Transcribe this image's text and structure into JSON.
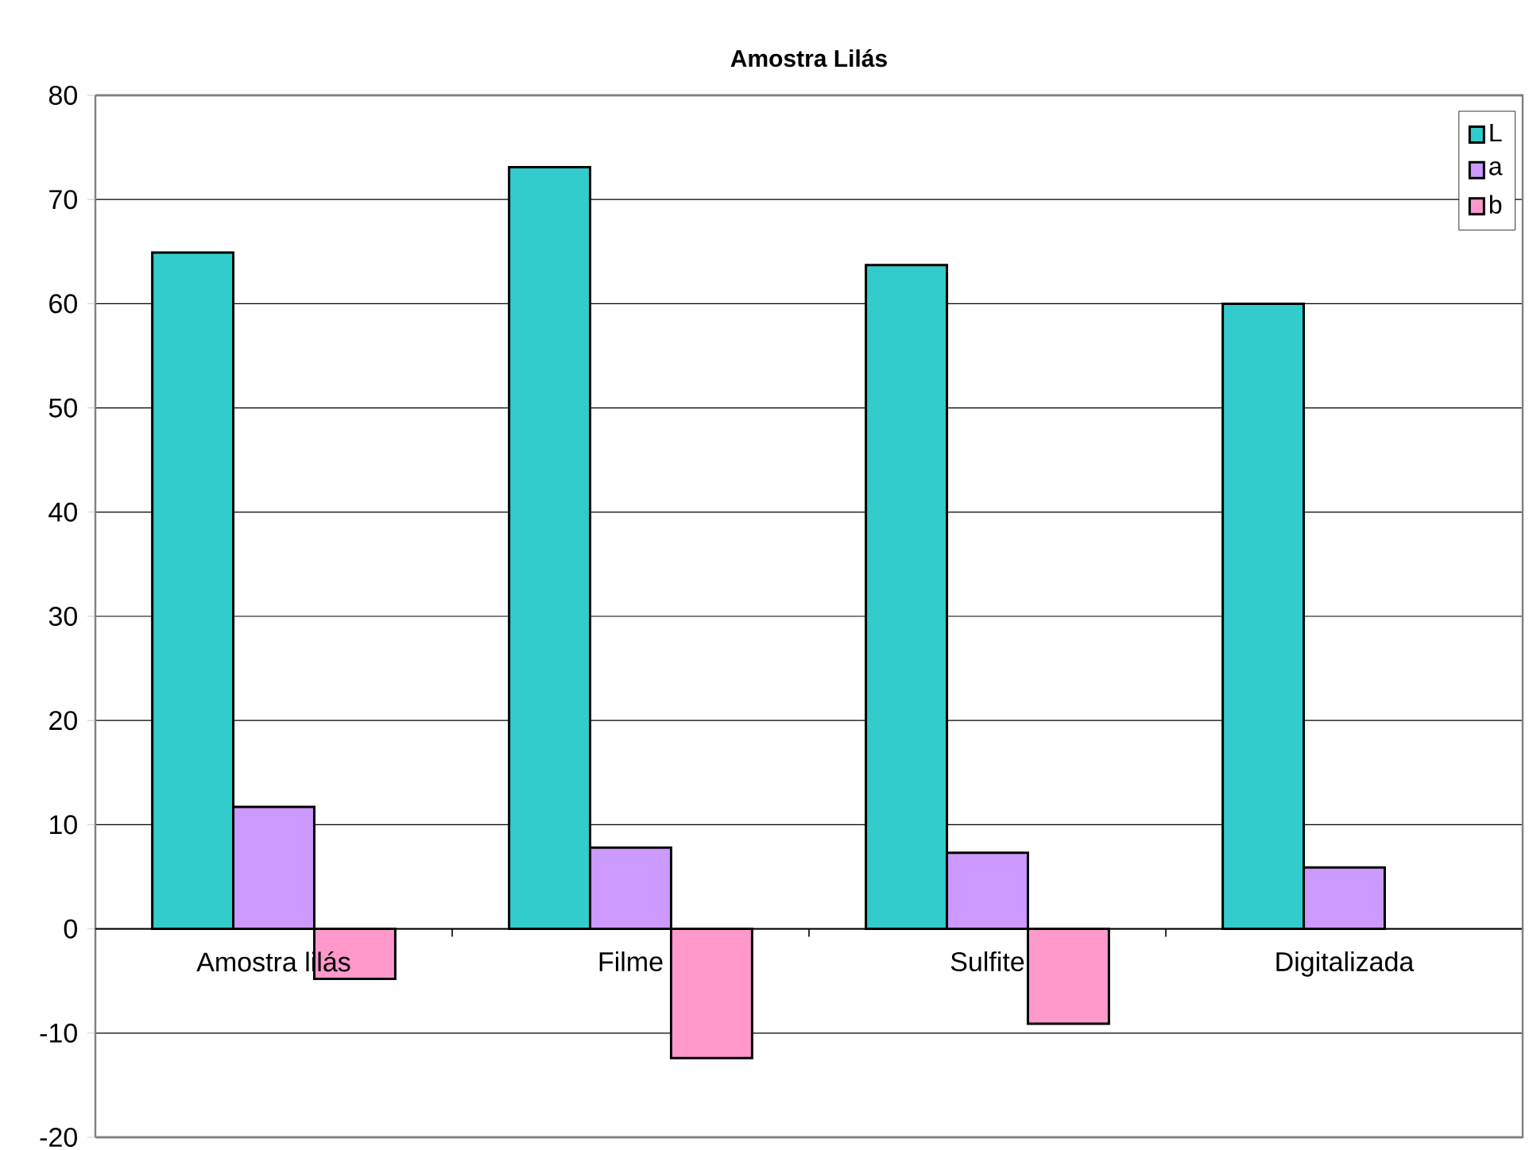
{
  "chart_data": {
    "type": "bar",
    "title": "Amostra Lilás",
    "categories": [
      "Amostra lilás",
      "Filme",
      "Sulfite",
      "Digitalizada"
    ],
    "series": [
      {
        "name": "L",
        "color": "#33cccc",
        "values": [
          64.9,
          73.1,
          63.7,
          60.0
        ]
      },
      {
        "name": "a",
        "color": "#cc99ff",
        "values": [
          11.7,
          7.8,
          7.3,
          5.9
        ]
      },
      {
        "name": "b",
        "color": "#ff99cc",
        "values": [
          -4.8,
          -12.4,
          -9.1,
          null
        ]
      }
    ],
    "ylim": [
      -20,
      80
    ],
    "yticks": [
      -20,
      -10,
      0,
      10,
      20,
      30,
      40,
      50,
      60,
      70,
      80
    ],
    "grid": "y",
    "legend": "top right"
  }
}
